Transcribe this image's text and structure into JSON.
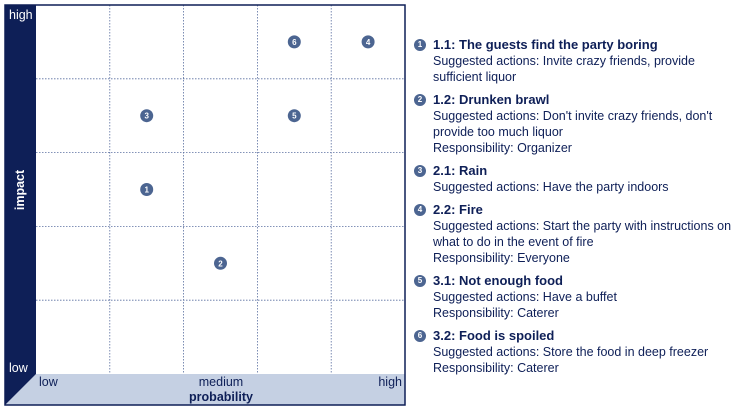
{
  "matrix": {
    "y_axis": {
      "label": "impact",
      "high": "high",
      "low": "low"
    },
    "x_axis": {
      "label": "probability",
      "low": "low",
      "medium": "medium",
      "high": "high"
    },
    "grid": {
      "cols": 5,
      "rows": 5
    },
    "markers": [
      {
        "id": "1",
        "col": 1.5,
        "row": 2.5
      },
      {
        "id": "2",
        "col": 2.5,
        "row": 1.5
      },
      {
        "id": "3",
        "col": 1.5,
        "row": 3.5
      },
      {
        "id": "4",
        "col": 4.5,
        "row": 4.5
      },
      {
        "id": "5",
        "col": 3.5,
        "row": 3.5
      },
      {
        "id": "6",
        "col": 3.5,
        "row": 4.5
      }
    ],
    "colors": {
      "axis_dark": "#0e1f57",
      "axis_light": "#c5d0e3",
      "marker": "#4c6591",
      "grid": "#5a6fa0"
    }
  },
  "risks": [
    {
      "id": "1",
      "title": "1.1: The guests find the party boring",
      "lines": [
        "Suggested actions: Invite crazy friends, provide",
        "sufficient liquor"
      ]
    },
    {
      "id": "2",
      "title": "1.2: Drunken brawl",
      "lines": [
        "Suggested actions: Don't invite crazy friends, don't",
        "provide too much liquor",
        "Responsibility: Organizer"
      ]
    },
    {
      "id": "3",
      "title": "2.1: Rain",
      "lines": [
        "Suggested actions: Have the party indoors"
      ]
    },
    {
      "id": "4",
      "title": "2.2: Fire",
      "lines": [
        "Suggested actions: Start the party with instructions on",
        "what to do in the event of fire",
        "Responsibility: Everyone"
      ]
    },
    {
      "id": "5",
      "title": "3.1: Not enough food",
      "lines": [
        "Suggested actions: Have a buffet",
        "Responsibility: Caterer"
      ]
    },
    {
      "id": "6",
      "title": "3.2: Food is spoiled",
      "lines": [
        "Suggested actions: Store the food in deep freezer",
        "Responsibility: Caterer"
      ]
    }
  ]
}
